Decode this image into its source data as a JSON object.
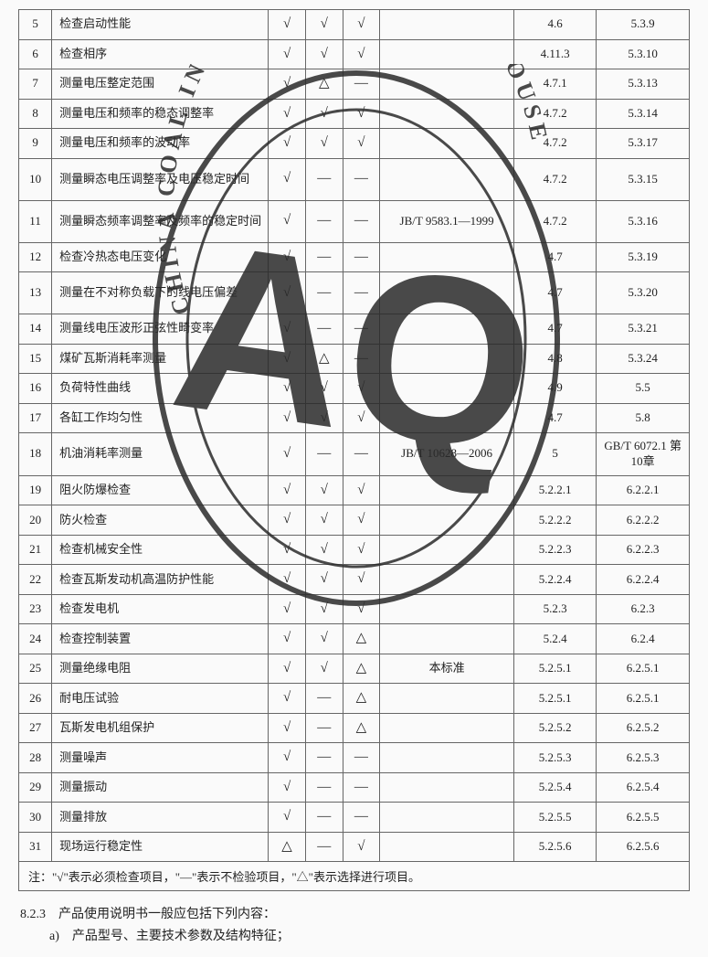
{
  "table": {
    "rows": [
      {
        "n": "5",
        "desc": "检查启动性能",
        "c1": "√",
        "c2": "√",
        "c3": "√",
        "r1": "4.6",
        "r2": "5.3.9",
        "tall": false
      },
      {
        "n": "6",
        "desc": "检查相序",
        "c1": "√",
        "c2": "√",
        "c3": "√",
        "r1": "4.11.3",
        "r2": "5.3.10",
        "tall": false
      },
      {
        "n": "7",
        "desc": "测量电压整定范围",
        "c1": "√",
        "c2": "△",
        "c3": "—",
        "r1": "4.7.1",
        "r2": "5.3.13",
        "tall": false
      },
      {
        "n": "8",
        "desc": "测量电压和频率的稳态调整率",
        "c1": "√",
        "c2": "√",
        "c3": "√",
        "r1": "4.7.2",
        "r2": "5.3.14",
        "tall": false
      },
      {
        "n": "9",
        "desc": "测量电压和频率的波动率",
        "c1": "√",
        "c2": "√",
        "c3": "√",
        "r1": "4.7.2",
        "r2": "5.3.17",
        "tall": false
      },
      {
        "n": "10",
        "desc": "测量瞬态电压调整率及电压稳定时间",
        "c1": "√",
        "c2": "—",
        "c3": "—",
        "r1": "4.7.2",
        "r2": "5.3.15",
        "tall": true
      },
      {
        "n": "11",
        "desc": "测量瞬态频率调整率及频率的稳定时间",
        "c1": "√",
        "c2": "—",
        "c3": "—",
        "blank": "JB/T 9583.1—1999",
        "r1": "4.7.2",
        "r2": "5.3.16",
        "tall": true
      },
      {
        "n": "12",
        "desc": "检查冷热态电压变化",
        "c1": "√",
        "c2": "—",
        "c3": "—",
        "r1": "4.7",
        "r2": "5.3.19",
        "tall": false
      },
      {
        "n": "13",
        "desc": "测量在不对称负载下的线电压偏差",
        "c1": "√",
        "c2": "—",
        "c3": "—",
        "r1": "4.7",
        "r2": "5.3.20",
        "tall": true
      },
      {
        "n": "14",
        "desc": "测量线电压波形正弦性畸变率",
        "c1": "√",
        "c2": "—",
        "c3": "—",
        "r1": "4.7",
        "r2": "5.3.21",
        "tall": false
      },
      {
        "n": "15",
        "desc": "煤矿瓦斯消耗率测量",
        "c1": "√",
        "c2": "△",
        "c3": "—",
        "r1": "4.8",
        "r2": "5.3.24",
        "tall": false
      },
      {
        "n": "16",
        "desc": "负荷特性曲线",
        "c1": "√",
        "c2": "√",
        "c3": "√",
        "r1": "4.9",
        "r2": "5.5",
        "tall": false
      },
      {
        "n": "17",
        "desc": "各缸工作均匀性",
        "c1": "√",
        "c2": "√",
        "c3": "√",
        "r1": "4.7",
        "r2": "5.8",
        "tall": false
      },
      {
        "n": "18",
        "desc": "机油消耗率测量",
        "c1": "√",
        "c2": "—",
        "c3": "—",
        "blank": "JB/T 10628—2006",
        "r1": "5",
        "r2": "GB/T 6072.1 第10章",
        "tall": true
      },
      {
        "n": "19",
        "desc": "阻火防爆检查",
        "c1": "√",
        "c2": "√",
        "c3": "√",
        "r1": "5.2.2.1",
        "r2": "6.2.2.1",
        "tall": false
      },
      {
        "n": "20",
        "desc": "防火检查",
        "c1": "√",
        "c2": "√",
        "c3": "√",
        "r1": "5.2.2.2",
        "r2": "6.2.2.2",
        "tall": false
      },
      {
        "n": "21",
        "desc": "检查机械安全性",
        "c1": "√",
        "c2": "√",
        "c3": "√",
        "r1": "5.2.2.3",
        "r2": "6.2.2.3",
        "tall": false
      },
      {
        "n": "22",
        "desc": "检查瓦斯发动机高温防护性能",
        "c1": "√",
        "c2": "√",
        "c3": "√",
        "r1": "5.2.2.4",
        "r2": "6.2.2.4",
        "tall": false
      },
      {
        "n": "23",
        "desc": "检查发电机",
        "c1": "√",
        "c2": "√",
        "c3": "√",
        "r1": "5.2.3",
        "r2": "6.2.3",
        "tall": false
      },
      {
        "n": "24",
        "desc": "检查控制装置",
        "c1": "√",
        "c2": "√",
        "c3": "△",
        "r1": "5.2.4",
        "r2": "6.2.4",
        "tall": false
      },
      {
        "n": "25",
        "desc": "测量绝缘电阻",
        "c1": "√",
        "c2": "√",
        "c3": "△",
        "blank": "本标准",
        "r1": "5.2.5.1",
        "r2": "6.2.5.1",
        "tall": false
      },
      {
        "n": "26",
        "desc": "耐电压试验",
        "c1": "√",
        "c2": "—",
        "c3": "△",
        "r1": "5.2.5.1",
        "r2": "6.2.5.1",
        "tall": false
      },
      {
        "n": "27",
        "desc": "瓦斯发电机组保护",
        "c1": "√",
        "c2": "—",
        "c3": "△",
        "r1": "5.2.5.2",
        "r2": "6.2.5.2",
        "tall": false
      },
      {
        "n": "28",
        "desc": "测量噪声",
        "c1": "√",
        "c2": "—",
        "c3": "—",
        "r1": "5.2.5.3",
        "r2": "6.2.5.3",
        "tall": false
      },
      {
        "n": "29",
        "desc": "测量振动",
        "c1": "√",
        "c2": "—",
        "c3": "—",
        "r1": "5.2.5.4",
        "r2": "6.2.5.4",
        "tall": false
      },
      {
        "n": "30",
        "desc": "测量排放",
        "c1": "√",
        "c2": "—",
        "c3": "—",
        "r1": "5.2.5.5",
        "r2": "6.2.5.5",
        "tall": false
      },
      {
        "n": "31",
        "desc": "现场运行稳定性",
        "c1": "△",
        "c2": "—",
        "c3": "√",
        "r1": "5.2.5.6",
        "r2": "6.2.5.6",
        "tall": false
      }
    ],
    "note": "注：\"√\"表示必须检查项目，\"—\"表示不检验项目，\"△\"表示选择进行项目。"
  },
  "below": {
    "section": "8.2.3　产品使用说明书一般应包括下列内容：",
    "item_a": "a)　产品型号、主要技术参数及结构特征；"
  },
  "watermark": {
    "outer_text": "CHINA COAL INDUSTRY PUBLISHING HOUSE",
    "letters": "AQ",
    "stroke_color": "#2b2b2b",
    "fill_color": "#2b2b2b"
  }
}
